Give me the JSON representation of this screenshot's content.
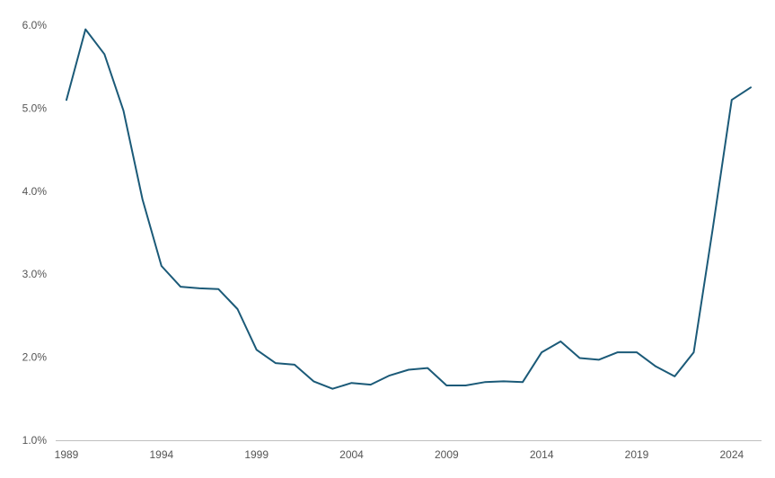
{
  "chart_data": {
    "type": "line",
    "title": "",
    "xlabel": "",
    "ylabel": "",
    "grid": false,
    "legend": "none",
    "xlim": [
      1989,
      2025
    ],
    "ylim": [
      1.0,
      6.0
    ],
    "x_ticks": [
      "1989",
      "1994",
      "1999",
      "2004",
      "2009",
      "2014",
      "2019",
      "2024"
    ],
    "y_ticks": [
      "1.0%",
      "2.0%",
      "3.0%",
      "4.0%",
      "5.0%",
      "6.0%"
    ],
    "colors": {
      "series": "#1b5a78",
      "axis": "#bfbfbf",
      "text": "#555555"
    },
    "series": [
      {
        "x": [
          1989,
          1990,
          1991,
          1992,
          1993,
          1994,
          1995,
          1996,
          1997,
          1998,
          1999,
          2000,
          2001,
          2002,
          2003,
          2004,
          2005,
          2006,
          2007,
          2008,
          2009,
          2010,
          2011,
          2012,
          2013,
          2014,
          2015,
          2016,
          2017,
          2018,
          2019,
          2020,
          2021,
          2022,
          2023,
          2024,
          2025
        ],
        "values": [
          5.1,
          5.95,
          5.65,
          4.97,
          3.9,
          3.1,
          2.85,
          2.83,
          2.82,
          2.58,
          2.09,
          1.93,
          1.91,
          1.71,
          1.62,
          1.69,
          1.67,
          1.78,
          1.85,
          1.87,
          1.66,
          1.66,
          1.7,
          1.71,
          1.7,
          2.06,
          2.19,
          1.99,
          1.97,
          2.06,
          2.06,
          1.89,
          1.77,
          2.06,
          3.55,
          5.1,
          5.25
        ]
      }
    ]
  }
}
